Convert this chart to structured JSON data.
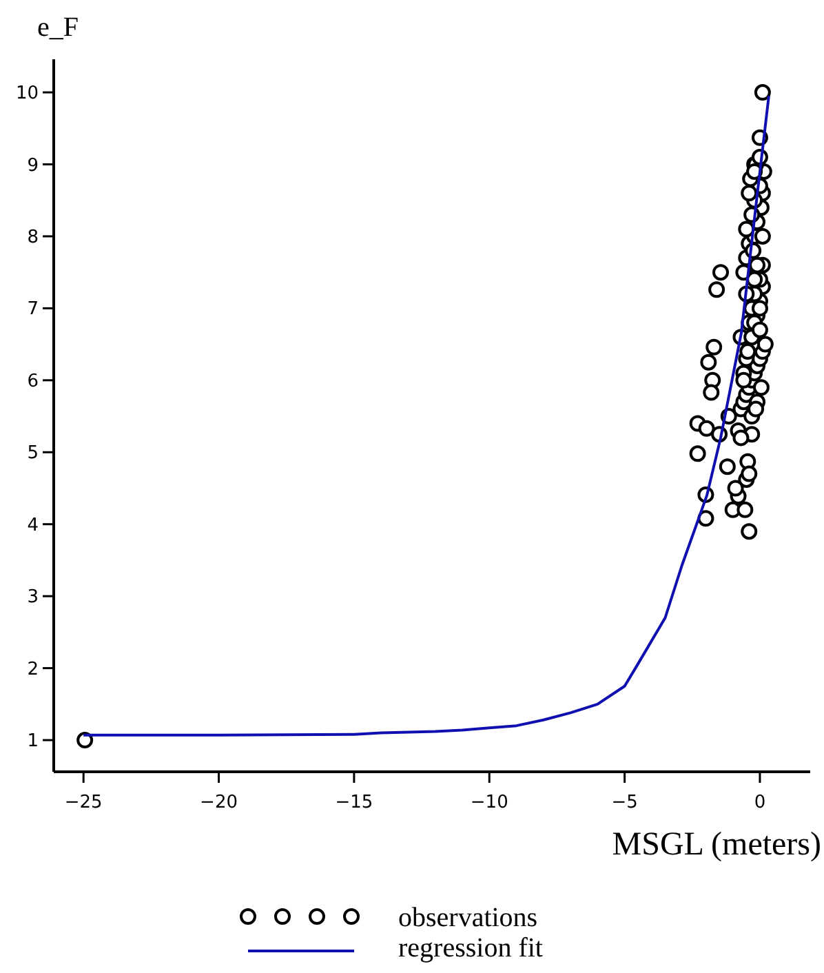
{
  "chart_data": {
    "type": "scatter",
    "xlabel": "MSGL (meters)",
    "ylabel": "e_F",
    "xlim": [
      -26.1,
      1.86
    ],
    "ylim": [
      0.56,
      10.46
    ],
    "xticks": [
      -25,
      -20,
      -15,
      -10,
      -5,
      0
    ],
    "yticks": [
      1,
      2,
      3,
      4,
      5,
      6,
      7,
      8,
      9,
      10
    ],
    "grid": false,
    "legend": "bottom",
    "marker": "circle",
    "series": [
      {
        "name": "observations",
        "color": "#000000",
        "x": [
          -24.95,
          0.1,
          0.0,
          -0.2,
          0.1,
          -1.45,
          -1.6,
          -1.7,
          -1.9,
          -1.75,
          -1.8,
          -1.15,
          -2.3,
          -1.97,
          -1.5,
          -0.8,
          -0.3,
          -2.3,
          -1.2,
          -0.45,
          -0.5,
          -2.0,
          -0.8,
          -1.0,
          -2.0,
          -0.4,
          -0.7,
          -0.6,
          -0.5,
          -0.4,
          -0.3,
          -0.2,
          -0.1,
          0.0,
          0.1,
          0.2,
          -0.6,
          -0.5,
          -0.3,
          -0.1,
          0.0,
          0.1,
          -0.7,
          -0.4,
          -0.3,
          -0.2,
          0.0,
          0.1,
          -0.6,
          -0.5,
          -0.4,
          -0.2,
          -0.1,
          0.05,
          -0.3,
          -0.2,
          0.0,
          0.15,
          -0.5,
          -0.35,
          -0.15,
          0.0,
          -0.25,
          -0.1,
          0.1,
          -0.4,
          -0.2,
          0.0,
          -0.3,
          -0.1,
          0.05,
          -0.45,
          -0.6,
          -0.3,
          -0.5,
          -0.2,
          -0.7,
          -0.4,
          -0.9,
          -0.55,
          -0.2,
          0.0,
          -0.15
        ],
        "values": [
          1.0,
          10.0,
          9.37,
          9.0,
          8.6,
          7.5,
          7.26,
          6.46,
          6.25,
          6.0,
          5.83,
          5.5,
          5.4,
          5.33,
          5.25,
          5.3,
          5.25,
          4.98,
          4.8,
          4.87,
          4.62,
          4.41,
          4.39,
          4.2,
          4.08,
          3.9,
          5.6,
          5.7,
          5.8,
          5.9,
          6.0,
          6.1,
          6.2,
          6.3,
          6.4,
          6.5,
          6.1,
          6.3,
          6.5,
          6.9,
          7.1,
          7.3,
          6.6,
          6.8,
          7.0,
          7.2,
          7.4,
          7.6,
          7.5,
          7.7,
          7.9,
          8.0,
          8.2,
          8.4,
          8.3,
          8.5,
          8.7,
          8.9,
          8.1,
          8.8,
          9.0,
          9.1,
          7.8,
          7.6,
          8.0,
          8.6,
          8.9,
          7.0,
          5.5,
          5.7,
          5.9,
          6.4,
          6.0,
          6.6,
          7.2,
          7.4,
          5.2,
          4.7,
          4.5,
          4.2,
          6.8,
          6.7,
          5.6
        ]
      },
      {
        "name": "regression fit",
        "type": "line",
        "color": "#1010b0",
        "marker": "none",
        "x": [
          -25,
          -20,
          -15,
          -14,
          -12,
          -11,
          -10,
          -9,
          -8,
          -7,
          -6,
          -5,
          -4.6,
          -3.5,
          -2.88,
          -1.96,
          -1.45,
          -0.69,
          -0.08,
          0.33
        ],
        "values": [
          1.07,
          1.07,
          1.08,
          1.1,
          1.12,
          1.14,
          1.17,
          1.2,
          1.28,
          1.38,
          1.5,
          1.75,
          2.0,
          2.7,
          3.43,
          4.4,
          5.2,
          6.65,
          8.64,
          9.95
        ]
      }
    ]
  }
}
